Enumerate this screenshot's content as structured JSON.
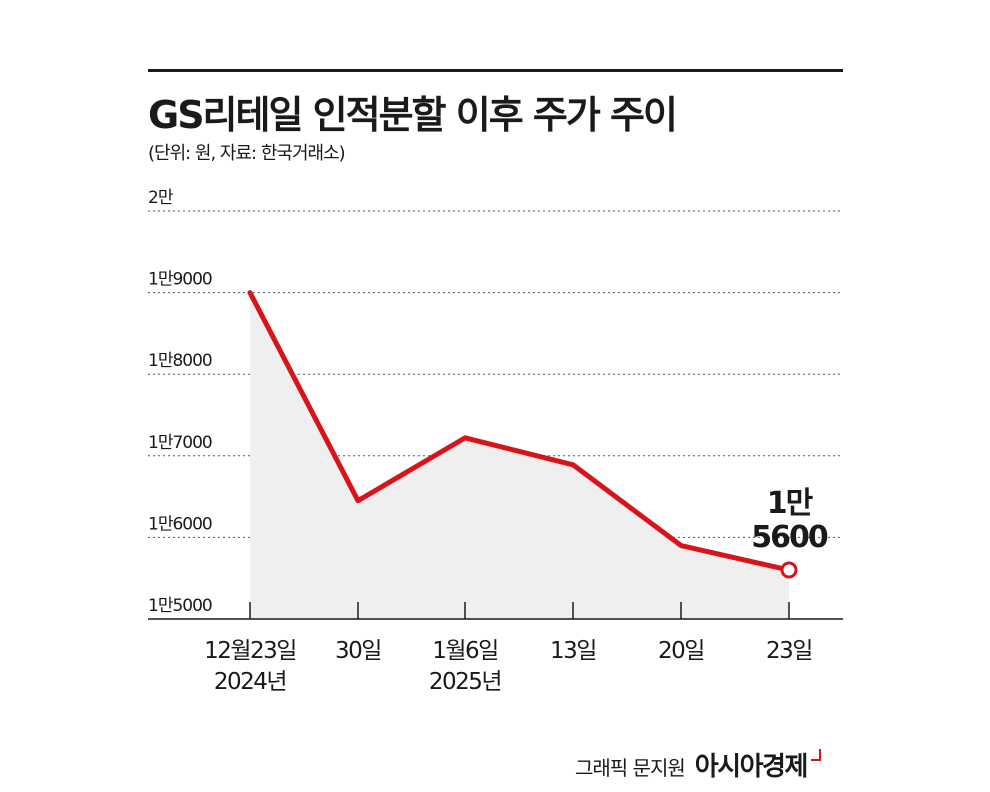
{
  "header": {
    "title": "GS리테일 인적분할 이후 주가 주이",
    "subtitle": "(단위: 원, 자료: 한국거래소)"
  },
  "chart_data": {
    "type": "area",
    "title": "GS리테일 인적분할 이후 주가 주이",
    "subtitle": "(단위: 원, 자료: 한국거래소)",
    "categories": [
      [
        "12월23일",
        "2024년"
      ],
      [
        "30일"
      ],
      [
        "1월6일",
        "2025년"
      ],
      [
        "13일"
      ],
      [
        "20일"
      ],
      [
        "23일"
      ]
    ],
    "values": [
      19000,
      16450,
      17220,
      16890,
      15900,
      15600
    ],
    "ylim": [
      15000,
      20000
    ],
    "yticks": [
      {
        "value": 20000,
        "label": "2만"
      },
      {
        "value": 19000,
        "label": "1만9000"
      },
      {
        "value": 18000,
        "label": "1만8000"
      },
      {
        "value": 17000,
        "label": "1만7000"
      },
      {
        "value": 16000,
        "label": "1만6000"
      },
      {
        "value": 15000,
        "label": "1만5000"
      }
    ],
    "annotation": {
      "index": 5,
      "lines": [
        "1만",
        "5600"
      ]
    },
    "grid": true,
    "line_color": "#d7141a",
    "fill_color": "#efefef"
  },
  "credit": {
    "text": "그래픽 문지원",
    "logo": "아시아경제"
  }
}
